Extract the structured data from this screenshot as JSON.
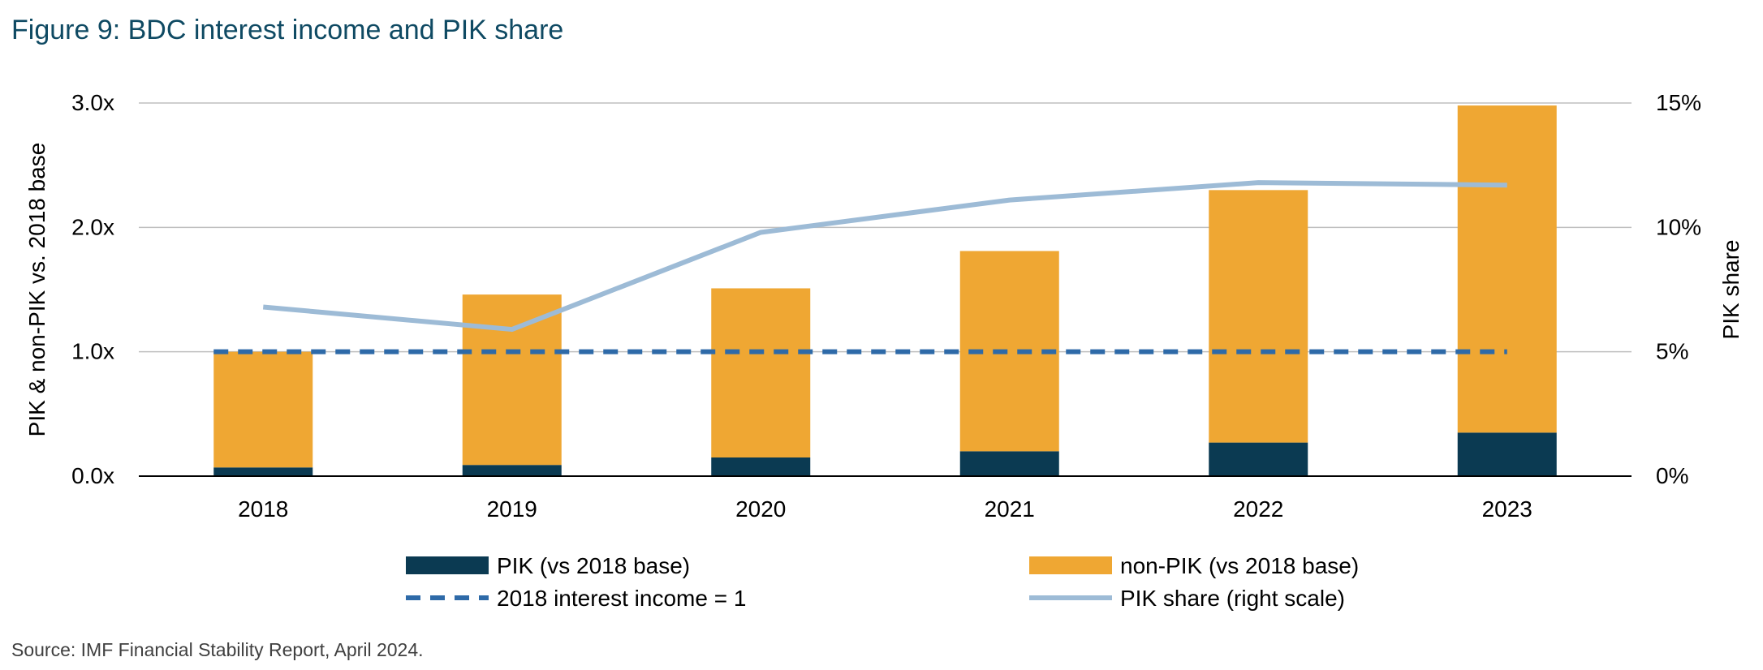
{
  "figure": {
    "title": "Figure 9: BDC interest income and PIK share",
    "source": "Source: IMF Financial Stability Report, April 2024."
  },
  "colors": {
    "pik": "#0b3a52",
    "non_pik": "#efa733",
    "baseline": "#2e6aa8",
    "share": "#9dbbd6",
    "grid": "#bfbfbf",
    "title": "#0f4a63"
  },
  "chart_data": {
    "type": "bar",
    "stacked": true,
    "categories": [
      "2018",
      "2019",
      "2020",
      "2021",
      "2022",
      "2023"
    ],
    "series": [
      {
        "name": "PIK (vs 2018 base)",
        "kind": "bar",
        "axis": "left",
        "values": [
          0.07,
          0.09,
          0.15,
          0.2,
          0.27,
          0.35
        ]
      },
      {
        "name": "non-PIK (vs 2018 base)",
        "kind": "bar",
        "axis": "left",
        "values": [
          0.93,
          1.37,
          1.36,
          1.61,
          2.03,
          2.63
        ]
      },
      {
        "name": "2018 interest income = 1",
        "kind": "dashed-line",
        "axis": "left",
        "values": [
          1,
          1,
          1,
          1,
          1,
          1
        ]
      },
      {
        "name": "PIK share (right scale)",
        "kind": "line",
        "axis": "right",
        "values": [
          6.8,
          5.9,
          9.8,
          11.1,
          11.8,
          11.7
        ]
      }
    ],
    "ylabel": "PIK & non-PIK vs. 2018 base",
    "ylabel_right": "PIK share",
    "ylim": [
      0,
      3
    ],
    "ylim_right": [
      0,
      15
    ],
    "yticks": [
      "0.0x",
      "1.0x",
      "2.0x",
      "3.0x"
    ],
    "yticks_right": [
      "0%",
      "5%",
      "10%",
      "15%"
    ],
    "grid": true,
    "legend_position": "bottom"
  }
}
